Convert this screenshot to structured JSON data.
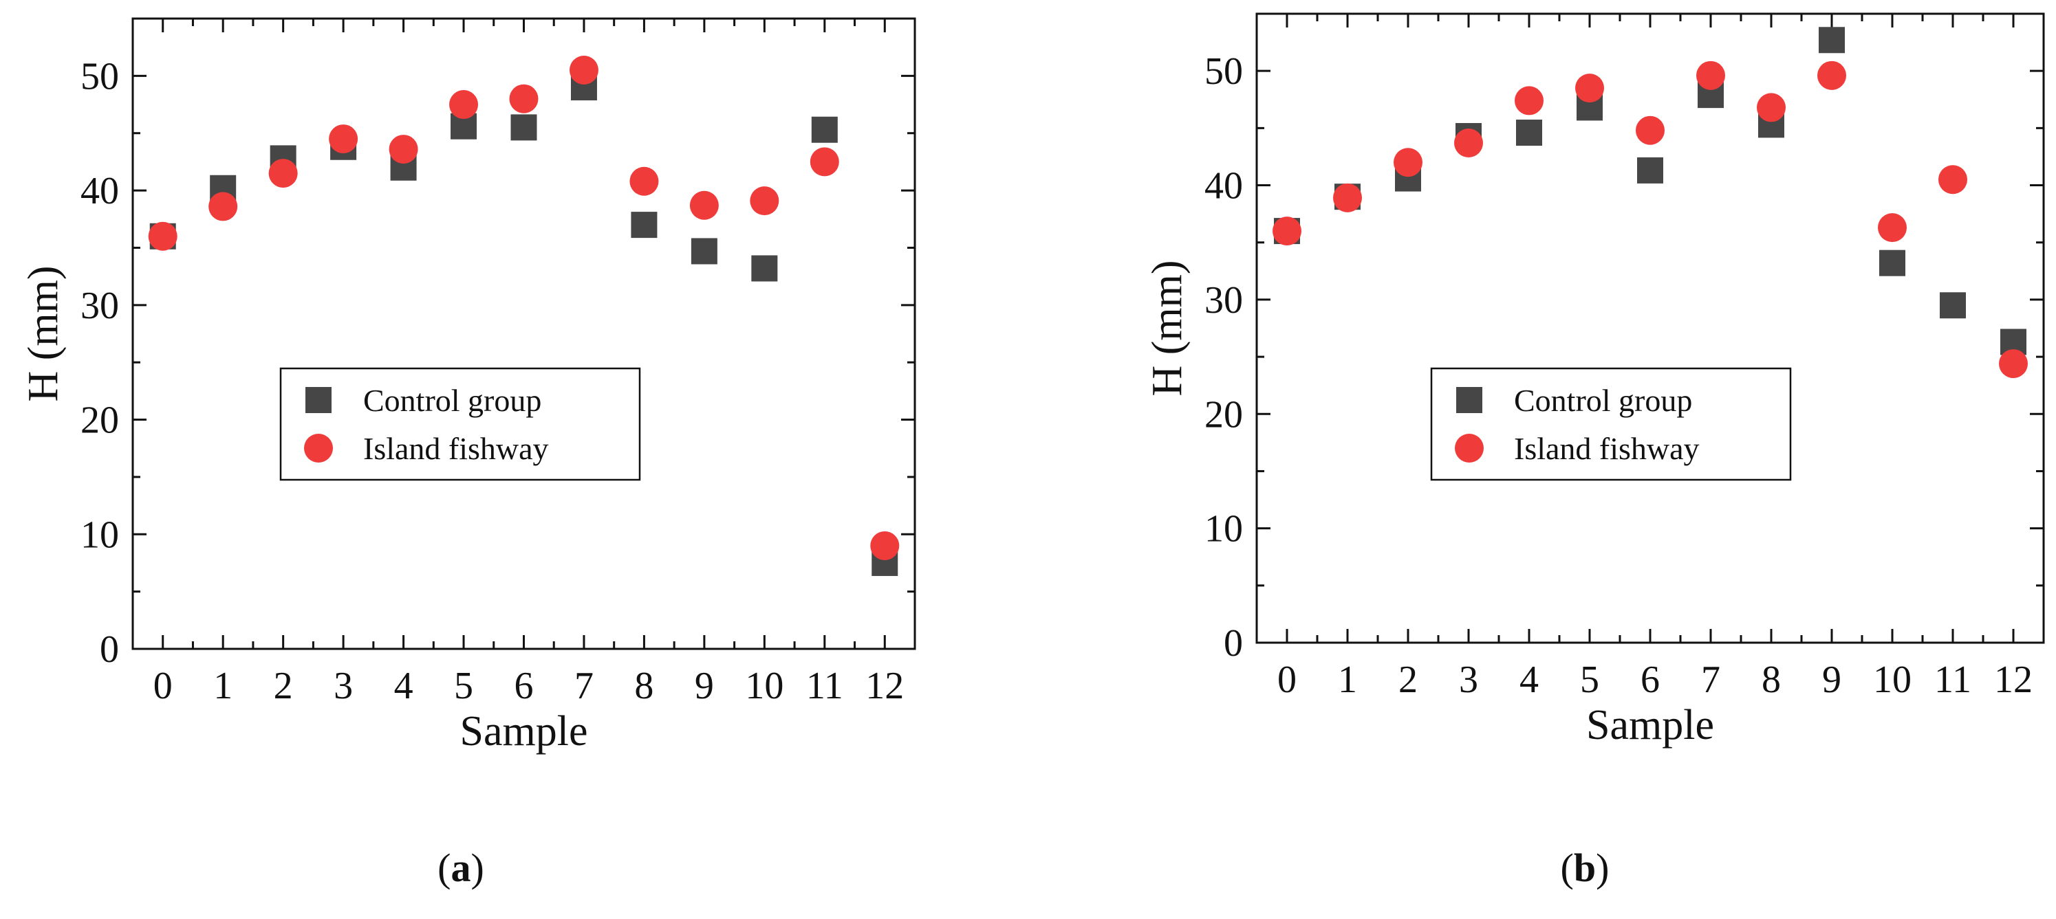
{
  "colors": {
    "control": "#464646",
    "island": "#f03b3b",
    "axis": "#111111"
  },
  "chart_data": [
    {
      "type": "scatter",
      "panel": "a",
      "caption": {
        "open": "(",
        "letter": "a",
        "close": ")"
      },
      "xlabel": "Sample",
      "ylabel": "H (mm)",
      "xlim": [
        -0.5,
        12.5
      ],
      "ylim": [
        0,
        55
      ],
      "xticks": [
        0,
        1,
        2,
        3,
        4,
        5,
        6,
        7,
        8,
        9,
        10,
        11,
        12
      ],
      "yticks": [
        0,
        10,
        20,
        30,
        40,
        50
      ],
      "legend": {
        "position": "center",
        "entries": [
          "Control group",
          "Island fishway"
        ]
      },
      "x": [
        0,
        1,
        2,
        3,
        4,
        5,
        6,
        7,
        8,
        9,
        10,
        11,
        12
      ],
      "series": [
        {
          "name": "Control group",
          "marker": "square",
          "values": [
            36.0,
            40.2,
            42.8,
            43.8,
            42.0,
            45.6,
            45.5,
            49.0,
            37.0,
            34.7,
            33.2,
            45.3,
            7.5
          ]
        },
        {
          "name": "Island fishway",
          "marker": "circle",
          "values": [
            36.0,
            38.6,
            41.5,
            44.5,
            43.6,
            47.5,
            48.0,
            50.5,
            40.8,
            38.7,
            39.1,
            42.5,
            9.0
          ]
        }
      ]
    },
    {
      "type": "scatter",
      "panel": "b",
      "caption": {
        "open": "(",
        "letter": "b",
        "close": ")"
      },
      "xlabel": "Sample",
      "ylabel": "H (mm)",
      "xlim": [
        -0.5,
        12.5
      ],
      "ylim": [
        0,
        55
      ],
      "xticks": [
        0,
        1,
        2,
        3,
        4,
        5,
        6,
        7,
        8,
        9,
        10,
        11,
        12
      ],
      "yticks": [
        0,
        10,
        20,
        30,
        40,
        50
      ],
      "legend": {
        "position": "center-right",
        "entries": [
          "Control group",
          "Island fishway"
        ]
      },
      "x": [
        0,
        1,
        2,
        3,
        4,
        5,
        6,
        7,
        8,
        9,
        10,
        11,
        12
      ],
      "series": [
        {
          "name": "Control group",
          "marker": "square",
          "values": [
            36.0,
            39.0,
            40.6,
            44.3,
            44.6,
            46.8,
            41.3,
            47.9,
            45.3,
            52.7,
            33.2,
            29.5,
            26.3
          ]
        },
        {
          "name": "Island fishway",
          "marker": "circle",
          "values": [
            36.0,
            38.9,
            42.0,
            43.7,
            47.4,
            48.5,
            44.8,
            49.6,
            46.8,
            49.6,
            36.3,
            40.5,
            24.4
          ]
        }
      ]
    }
  ]
}
